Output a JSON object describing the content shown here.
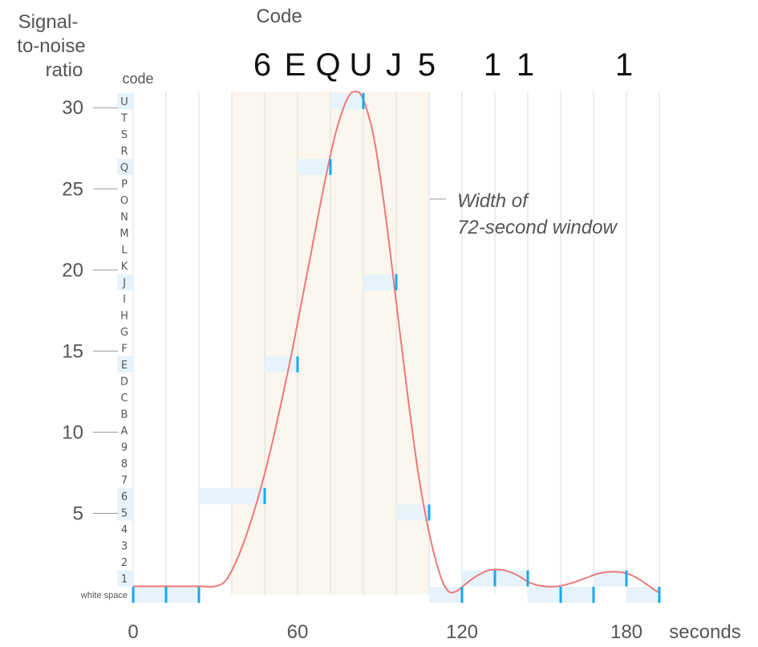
{
  "chart_data": {
    "type": "line",
    "y_title_lines": [
      "Signal-",
      "to-noise",
      "ratio"
    ],
    "code_axis_label": "code",
    "top_title": "Code",
    "x_unit_label": "seconds",
    "annotation_lines": [
      "Width of",
      "72-second window"
    ],
    "xlim": [
      0,
      192
    ],
    "ylim": [
      0,
      31
    ],
    "x_ticks": [
      "0",
      "60",
      "120",
      "180"
    ],
    "y_ticks": [
      "5",
      "10",
      "15",
      "20",
      "25",
      "30"
    ],
    "code_levels": [
      "white space",
      "1",
      "2",
      "3",
      "4",
      "5",
      "6",
      "7",
      "8",
      "9",
      "A",
      "B",
      "C",
      "D",
      "E",
      "F",
      "G",
      "H",
      "I",
      "J",
      "K",
      "L",
      "M",
      "N",
      "O",
      "P",
      "Q",
      "R",
      "S",
      "T",
      "U"
    ],
    "decoded_characters": [
      {
        "char": "6",
        "x": 48
      },
      {
        "char": "E",
        "x": 60
      },
      {
        "char": "Q",
        "x": 72
      },
      {
        "char": "U",
        "x": 84
      },
      {
        "char": "J",
        "x": 96
      },
      {
        "char": "5",
        "x": 108
      },
      {
        "char": "1",
        "x": 132
      },
      {
        "char": "1",
        "x": 144
      },
      {
        "char": "1",
        "x": 180
      }
    ],
    "window_shading": [
      36,
      108
    ],
    "curve": [
      [
        0,
        0.5
      ],
      [
        8,
        0.5
      ],
      [
        16,
        0.5
      ],
      [
        24,
        0.5
      ],
      [
        30,
        0.5
      ],
      [
        34,
        0.9
      ],
      [
        38,
        2.2
      ],
      [
        42,
        4.0
      ],
      [
        46,
        6.2
      ],
      [
        50,
        8.8
      ],
      [
        54,
        11.8
      ],
      [
        58,
        15.0
      ],
      [
        62,
        18.5
      ],
      [
        66,
        22.0
      ],
      [
        70,
        25.5
      ],
      [
        74,
        28.5
      ],
      [
        78,
        30.5
      ],
      [
        81,
        31.0
      ],
      [
        84,
        30.5
      ],
      [
        88,
        28.0
      ],
      [
        92,
        23.5
      ],
      [
        96,
        18.0
      ],
      [
        100,
        12.5
      ],
      [
        104,
        7.5
      ],
      [
        108,
        3.8
      ],
      [
        112,
        1.2
      ],
      [
        115,
        0.2
      ],
      [
        118,
        0.2
      ],
      [
        121,
        0.6
      ],
      [
        125,
        1.1
      ],
      [
        130,
        1.5
      ],
      [
        135,
        1.5
      ],
      [
        140,
        1.2
      ],
      [
        145,
        0.7
      ],
      [
        150,
        0.5
      ],
      [
        155,
        0.5
      ],
      [
        160,
        0.7
      ],
      [
        165,
        1.0
      ],
      [
        170,
        1.3
      ],
      [
        175,
        1.4
      ],
      [
        180,
        1.3
      ],
      [
        185,
        0.9
      ],
      [
        190,
        0.3
      ],
      [
        192,
        0.1
      ]
    ],
    "samples": [
      {
        "x": 0,
        "level": 0
      },
      {
        "x": 12,
        "level": 0
      },
      {
        "x": 24,
        "level": 0
      },
      {
        "x": 48,
        "level": 6
      },
      {
        "x": 60,
        "level": 14
      },
      {
        "x": 72,
        "level": 26
      },
      {
        "x": 84,
        "level": 30
      },
      {
        "x": 96,
        "level": 19
      },
      {
        "x": 108,
        "level": 5
      },
      {
        "x": 120,
        "level": 0
      },
      {
        "x": 132,
        "level": 1
      },
      {
        "x": 144,
        "level": 1
      },
      {
        "x": 156,
        "level": 0
      },
      {
        "x": 168,
        "level": 0
      },
      {
        "x": 180,
        "level": 1
      },
      {
        "x": 192,
        "level": 0
      }
    ],
    "colors": {
      "curve": "#f07878",
      "marker": "#17a9ef",
      "band": "#e6f3fb",
      "window": "#fbf7ee",
      "grid": "#dddddd"
    },
    "grid": true
  }
}
